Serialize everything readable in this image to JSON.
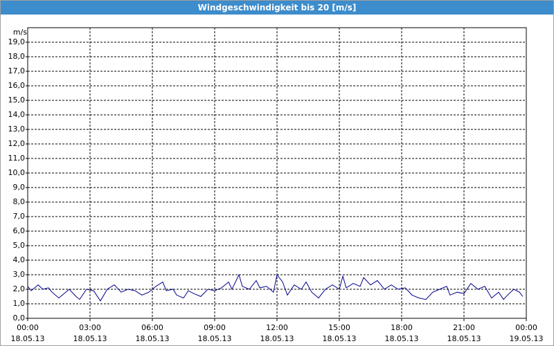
{
  "chart_data": {
    "type": "line",
    "title": "Windgeschwindigkeit bis 20 [m/s]",
    "y_label": "m/s",
    "xlim": [
      0,
      24
    ],
    "ylim": [
      0,
      20
    ],
    "grid": true,
    "xticks": [
      {
        "value": 0,
        "label": "00:00\n18.05.13"
      },
      {
        "value": 3,
        "label": "03:00\n18.05.13"
      },
      {
        "value": 6,
        "label": "06:00\n18.05.13"
      },
      {
        "value": 9,
        "label": "09:00\n18.05.13"
      },
      {
        "value": 12,
        "label": "12:00\n18.05.13"
      },
      {
        "value": 15,
        "label": "15:00\n18.05.13"
      },
      {
        "value": 18,
        "label": "18:00\n18.05.13"
      },
      {
        "value": 21,
        "label": "21:00\n18.05.13"
      },
      {
        "value": 24,
        "label": "00:00\n19.05.13"
      }
    ],
    "yticks": [
      {
        "value": 0,
        "label": "0,0"
      },
      {
        "value": 1,
        "label": "1,0"
      },
      {
        "value": 2,
        "label": "2,0"
      },
      {
        "value": 3,
        "label": "3,0"
      },
      {
        "value": 4,
        "label": "4,0"
      },
      {
        "value": 5,
        "label": "5,0"
      },
      {
        "value": 6,
        "label": "6,0"
      },
      {
        "value": 7,
        "label": "7,0"
      },
      {
        "value": 8,
        "label": "8,0"
      },
      {
        "value": 9,
        "label": "9,0"
      },
      {
        "value": 10,
        "label": "10,0"
      },
      {
        "value": 11,
        "label": "11,0"
      },
      {
        "value": 12,
        "label": "12,0"
      },
      {
        "value": 13,
        "label": "13,0"
      },
      {
        "value": 14,
        "label": "14,0"
      },
      {
        "value": 15,
        "label": "15,0"
      },
      {
        "value": 16,
        "label": "16,0"
      },
      {
        "value": 17,
        "label": "17,0"
      },
      {
        "value": 18,
        "label": "18,0"
      },
      {
        "value": 19,
        "label": "19,0"
      }
    ],
    "x": [
      0,
      0.17,
      0.5,
      0.73,
      1,
      1.17,
      1.5,
      1.83,
      2,
      2.33,
      2.5,
      2.83,
      3.17,
      3.5,
      3.83,
      4.17,
      4.5,
      4.83,
      5.17,
      5.5,
      5.83,
      6.17,
      6.5,
      6.67,
      7,
      7.17,
      7.5,
      7.73,
      8,
      8.33,
      8.67,
      9,
      9.33,
      9.67,
      9.83,
      10.17,
      10.33,
      10.67,
      11,
      11.17,
      11.5,
      11.83,
      12,
      12.27,
      12.5,
      12.83,
      13.17,
      13.4,
      13.67,
      14,
      14.33,
      14.67,
      15,
      15.17,
      15.33,
      15.67,
      16,
      16.17,
      16.5,
      16.83,
      17.17,
      17.5,
      17.83,
      18.17,
      18.5,
      18.83,
      19.17,
      19.5,
      19.83,
      20.17,
      20.33,
      20.67,
      21,
      21.33,
      21.67,
      22,
      22.33,
      22.67,
      22.9,
      23.17,
      23.4,
      23.67,
      23.83
    ],
    "series": [
      {
        "color": "#00008b",
        "values": [
          2.2,
          1.9,
          2.3,
          2.0,
          2.1,
          1.8,
          1.4,
          1.8,
          2.0,
          1.5,
          1.3,
          2.0,
          1.9,
          1.2,
          2.0,
          2.3,
          1.8,
          2.0,
          1.9,
          1.6,
          1.8,
          2.2,
          2.5,
          1.9,
          2.0,
          1.6,
          1.4,
          1.9,
          1.7,
          1.5,
          2.0,
          1.9,
          2.1,
          2.5,
          2.0,
          3.0,
          2.2,
          2.0,
          2.6,
          2.1,
          2.2,
          1.8,
          3.0,
          2.5,
          1.6,
          2.3,
          2.0,
          2.5,
          1.8,
          1.4,
          2.0,
          2.3,
          2.0,
          2.9,
          2.1,
          2.4,
          2.2,
          2.8,
          2.3,
          2.6,
          2.0,
          2.3,
          2.0,
          2.1,
          1.6,
          1.4,
          1.3,
          1.8,
          2.0,
          2.2,
          1.6,
          1.8,
          1.7,
          2.4,
          2.0,
          2.2,
          1.4,
          1.8,
          1.3,
          1.7,
          2.0,
          1.8,
          1.5
        ]
      }
    ]
  }
}
